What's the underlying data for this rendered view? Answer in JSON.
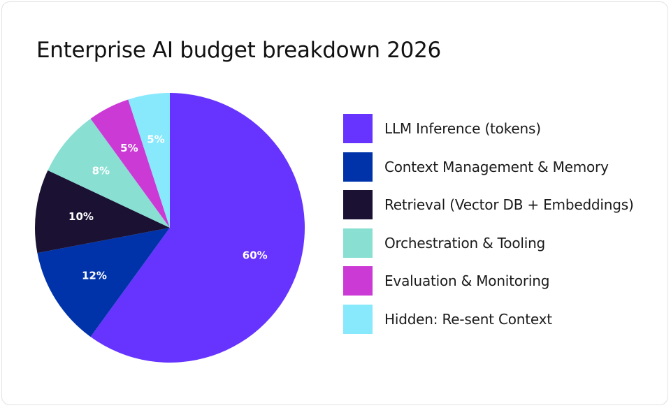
{
  "chart_data": {
    "type": "pie",
    "title": "Enterprise AI budget breakdown 2026",
    "start_angle_deg": 0,
    "direction": "clockwise",
    "legend_position": "right",
    "slices": [
      {
        "label": "LLM Inference (tokens)",
        "value": 60,
        "display": "60%",
        "color": "#6633ff"
      },
      {
        "label": "Context Management & Memory",
        "value": 12,
        "display": "12%",
        "color": "#0033aa"
      },
      {
        "label": "Retrieval (Vector DB + Embeddings)",
        "value": 10,
        "display": "10%",
        "color": "#1a1133"
      },
      {
        "label": "Orchestration & Tooling",
        "value": 8,
        "display": "8%",
        "color": "#88dfd2"
      },
      {
        "label": "Evaluation & Monitoring",
        "value": 5,
        "display": "5%",
        "color": "#cc3ad6"
      },
      {
        "label": "Hidden: Re-sent Context",
        "value": 5,
        "display": "5%",
        "color": "#88e8fc"
      }
    ]
  }
}
